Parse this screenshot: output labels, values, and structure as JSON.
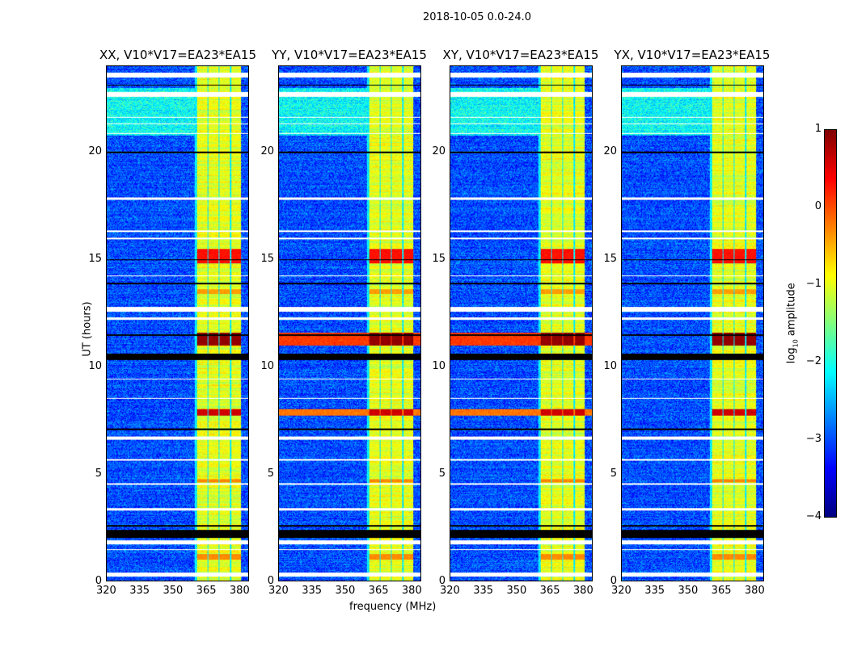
{
  "chart_data": {
    "type": "heatmap",
    "title": "2018-10-05 0.0-24.0",
    "xlabel": "frequency (MHz)",
    "ylabel": "UT (hours)",
    "xlim": [
      320,
      384.4
    ],
    "ylim": [
      0,
      24
    ],
    "xticks": [
      "320",
      "335",
      "350",
      "365",
      "380"
    ],
    "yticks": [
      "0",
      "5",
      "10",
      "15",
      "20"
    ],
    "panels": [
      {
        "title": "XX, V10*V17=EA23*EA15"
      },
      {
        "title": "YY, V10*V17=EA23*EA15"
      },
      {
        "title": "XY, V10*V17=EA23*EA15"
      },
      {
        "title": "YX, V10*V17=EA23*EA15"
      }
    ],
    "colorbar": {
      "label_main": "log",
      "label_sub": "10",
      "label_rest": " amplitude",
      "range": [
        -4,
        1
      ],
      "ticks": [
        "1",
        "0",
        "−1",
        "−2",
        "−3",
        "−4"
      ],
      "colormap": "jet"
    },
    "background_level": -3.0,
    "rfi_channels_mhz": [
      [
        361.0,
        365.8
      ],
      [
        366.2,
        370.6
      ],
      [
        371.3,
        375.7
      ],
      [
        376.4,
        380.8
      ]
    ],
    "rfi_channel_level": -1.0,
    "bright_periods_hours": [
      {
        "t": [
          11.0,
          11.6
        ],
        "level": 0.9
      },
      {
        "t": [
          14.8,
          15.5
        ],
        "level": 0.3
      },
      {
        "t": [
          7.7,
          8.0
        ],
        "level": 0.6
      },
      {
        "t": [
          13.4,
          13.6
        ],
        "level": -0.4
      },
      {
        "t": [
          4.6,
          4.75
        ],
        "level": -0.3
      },
      {
        "t": [
          1.0,
          1.25
        ],
        "level": -0.3
      }
    ],
    "elevated_background_hours": [
      [
        20.8,
        23.0
      ]
    ],
    "flagged_hours": [
      [
        23.5,
        23.72
      ],
      [
        22.6,
        22.8
      ],
      [
        21.6,
        21.66
      ],
      [
        21.3,
        21.35
      ],
      [
        20.85,
        20.92
      ],
      [
        17.8,
        17.88
      ],
      [
        16.3,
        16.35
      ],
      [
        15.95,
        16.0
      ],
      [
        14.2,
        14.26
      ],
      [
        12.55,
        12.78
      ],
      [
        12.2,
        12.3
      ],
      [
        9.4,
        9.45
      ],
      [
        8.5,
        8.55
      ],
      [
        6.6,
        6.75
      ],
      [
        5.6,
        5.68
      ],
      [
        4.5,
        4.55
      ],
      [
        3.3,
        3.4
      ],
      [
        1.7,
        1.9
      ],
      [
        1.45,
        1.5
      ],
      [
        0.2,
        0.4
      ]
    ],
    "dark_gaps_hours": [
      [
        2.0,
        2.4
      ],
      [
        2.55,
        2.6
      ],
      [
        19.95,
        20.05
      ],
      [
        23.1,
        23.14
      ],
      [
        14.95,
        15.0
      ],
      [
        11.45,
        11.5
      ],
      [
        10.3,
        10.6
      ],
      [
        13.85,
        13.9
      ],
      [
        7.05,
        7.1
      ]
    ]
  }
}
